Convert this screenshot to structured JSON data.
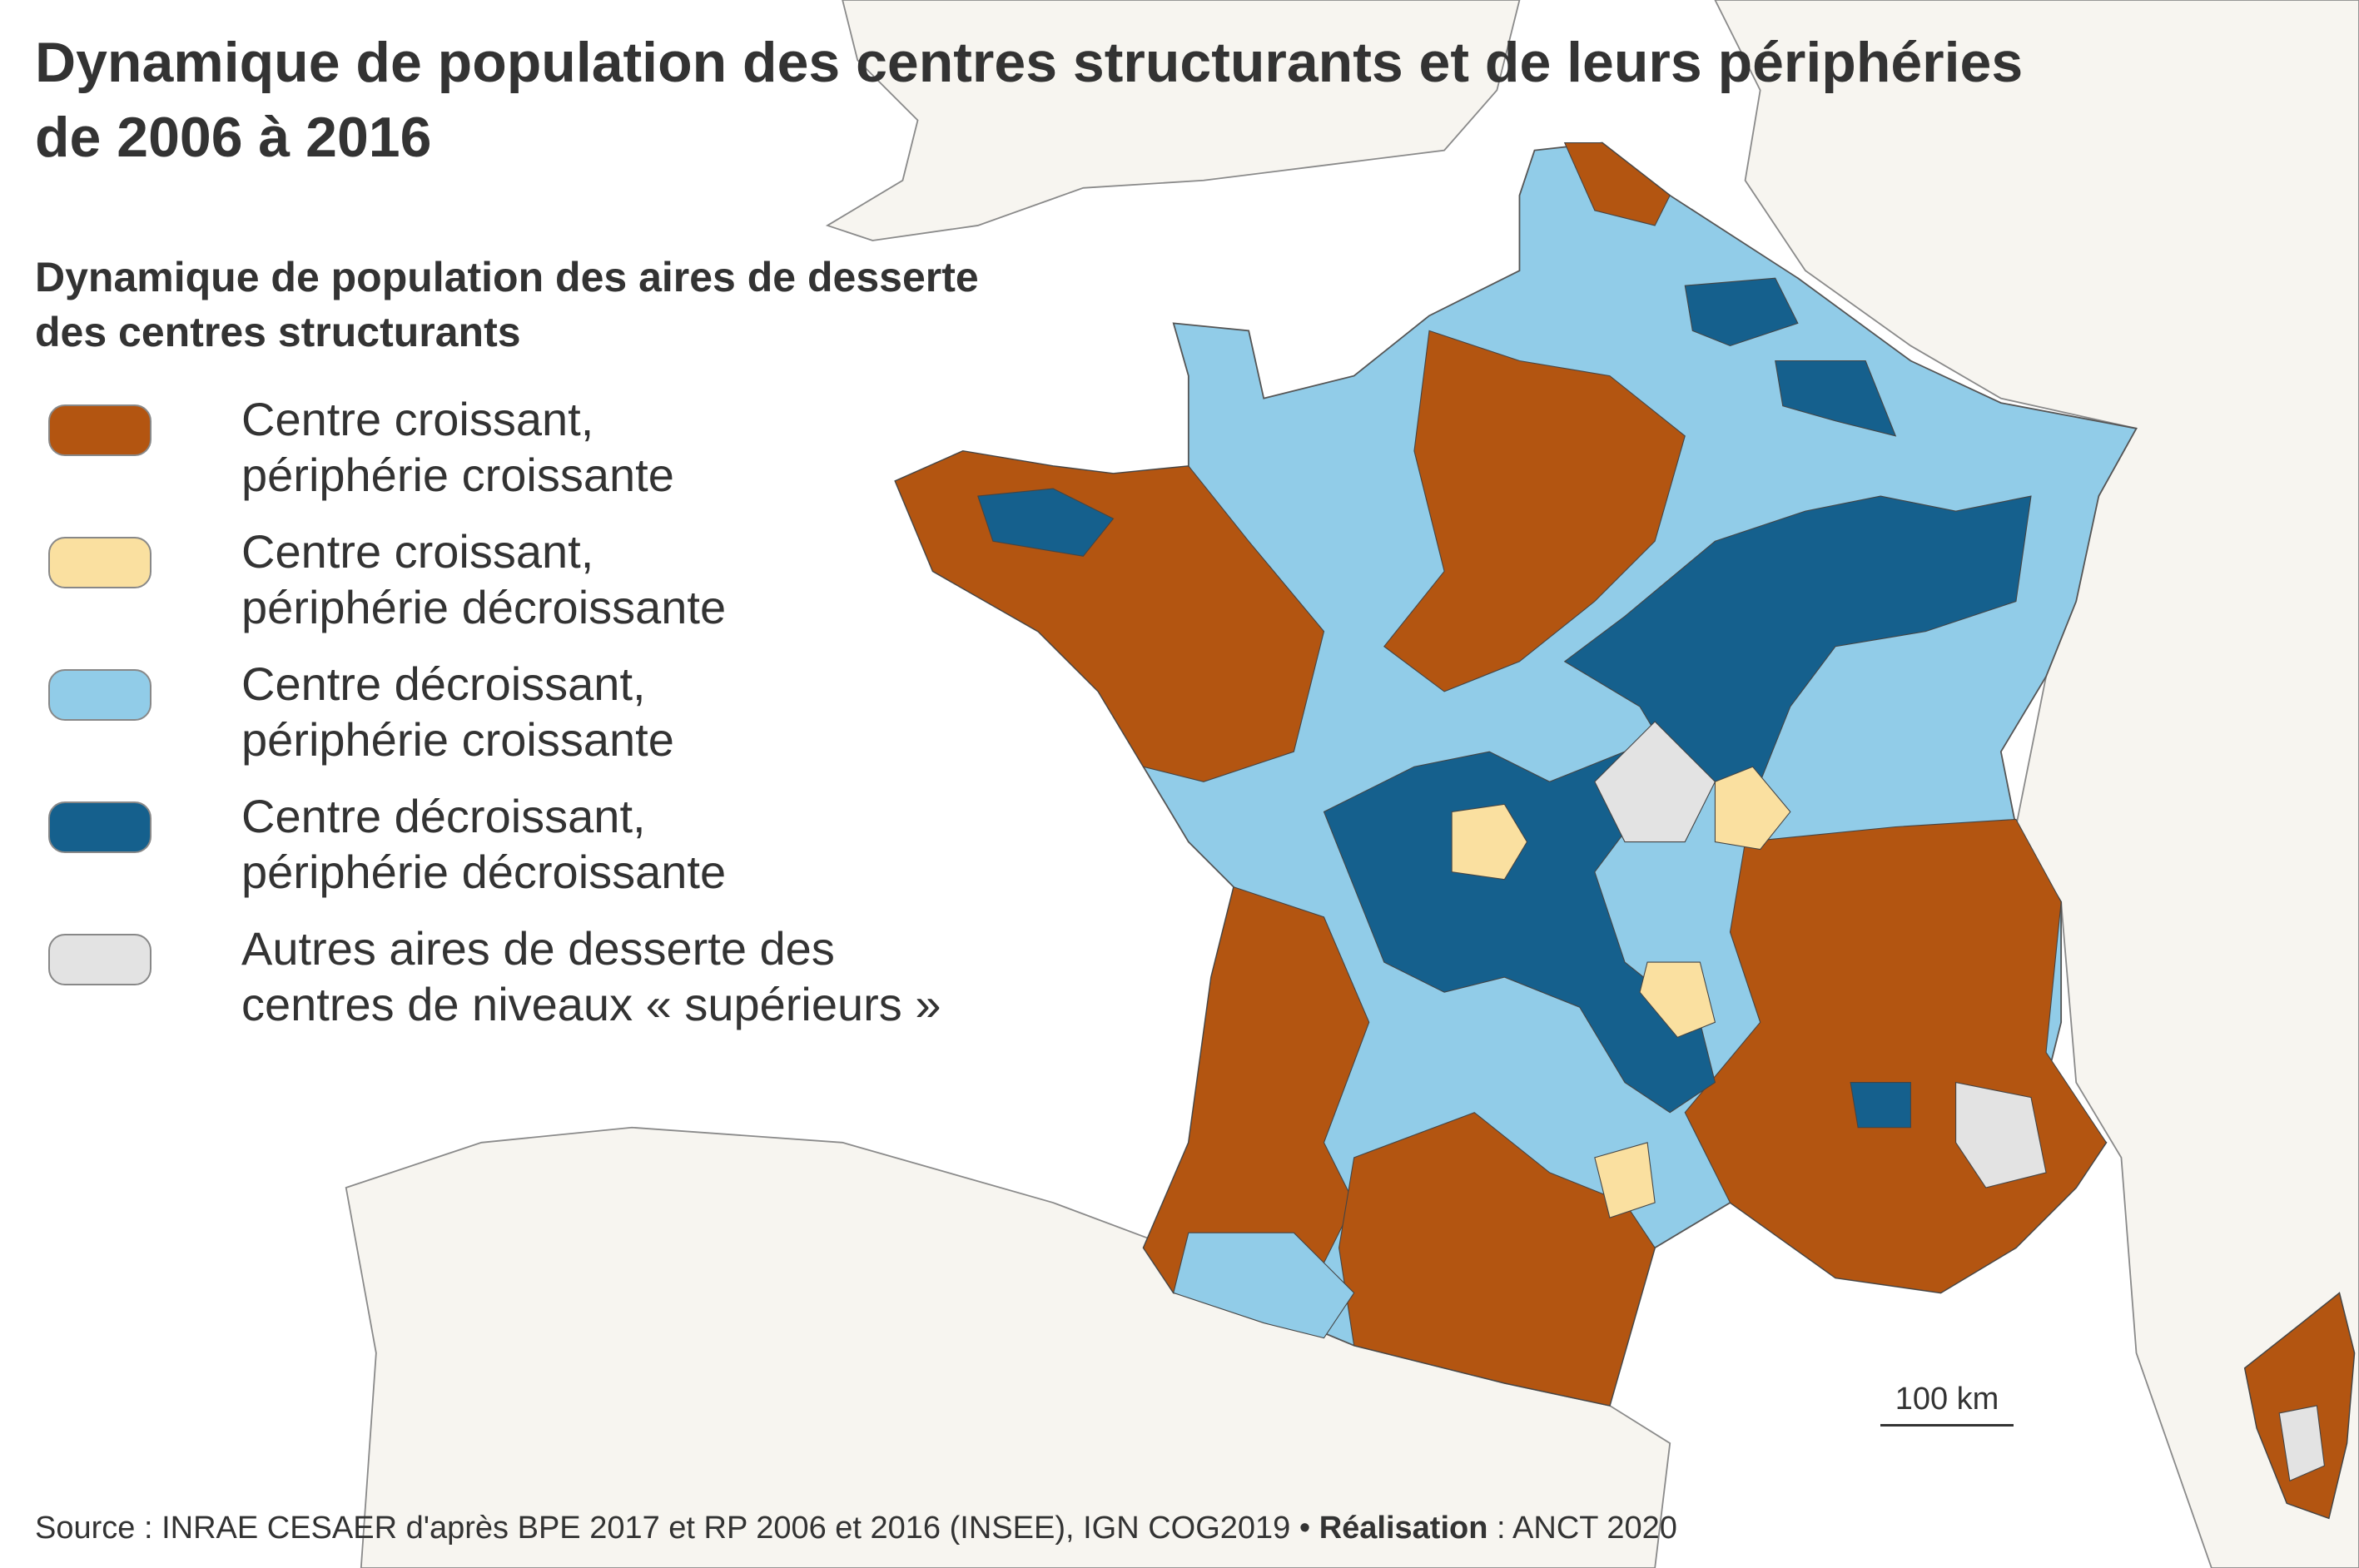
{
  "title": {
    "line1": "Dynamique de population des centres structurants et de leurs périphéries",
    "line2": "de 2006 à 2016"
  },
  "legend": {
    "title_line1": "Dynamique de population des aires de desserte",
    "title_line2": "des centres structurants",
    "items": [
      {
        "line1": "Centre croissant,",
        "line2": "périphérie croissante",
        "color": "#b35511"
      },
      {
        "line1": "Centre croissant,",
        "line2": "périphérie décroissante",
        "color": "#fae0a0"
      },
      {
        "line1": "Centre décroissant,",
        "line2": "périphérie croissante",
        "color": "#91cce8"
      },
      {
        "line1": "Centre décroissant,",
        "line2": "périphérie décroissante",
        "color": "#15608d"
      },
      {
        "line1": "Autres aires de desserte des",
        "line2": "centres de niveaux « supérieurs »",
        "color": "#e3e3e3"
      }
    ]
  },
  "scale": {
    "label": "100 km"
  },
  "source": {
    "label": "Source",
    "text": " : INRAE CESAER d'après BPE 2017 et RP 2006 et 2016 (INSEE), IGN COG2019 • ",
    "credit_label": "Réalisation",
    "credit_text": " : ANCT 2020"
  },
  "colors": {
    "land": "#f7f5f0",
    "border": "#8a8a8a",
    "sea": "#ffffff"
  }
}
